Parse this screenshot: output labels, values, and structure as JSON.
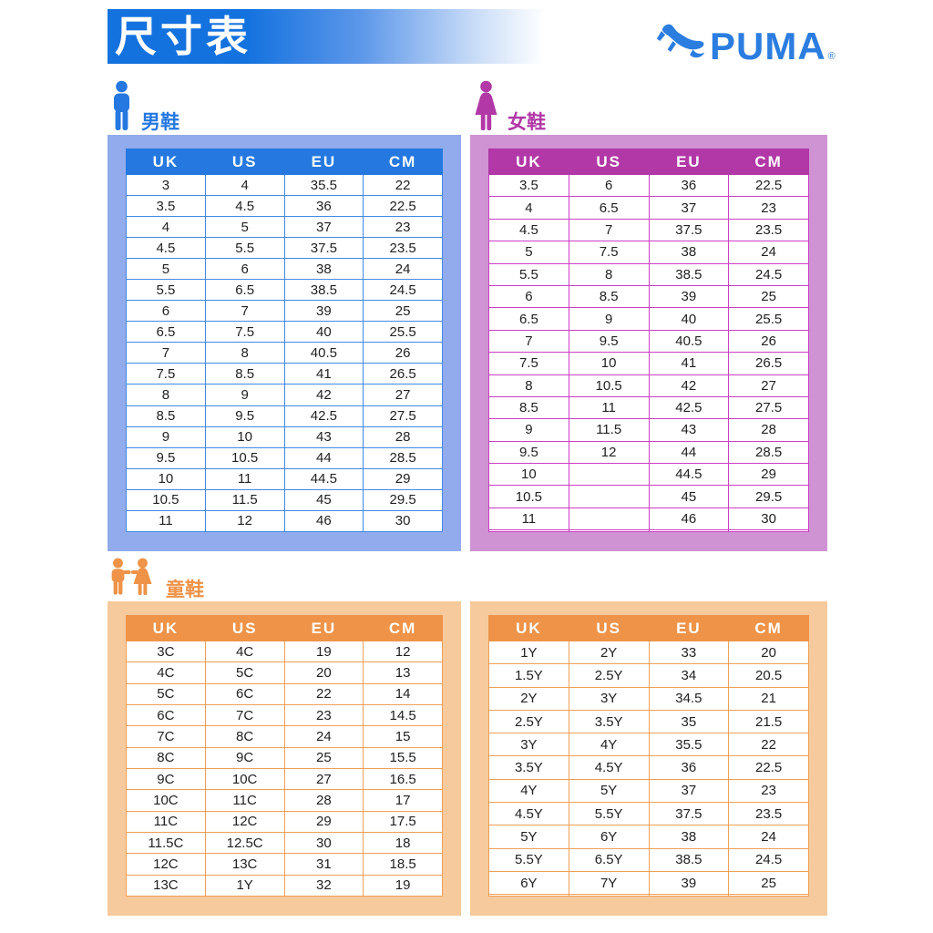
{
  "header": {
    "title": "尺寸表",
    "brand": "PUMA",
    "registered_mark": "®"
  },
  "colors": {
    "title-blue": "#1472df",
    "brand-blue": "#2b7de0",
    "men-accent": "#2478e0",
    "men-frame": "#92abec",
    "men-border": "#4289e4",
    "women-accent": "#b138a6",
    "women-frame": "#cf92d2",
    "women-border": "#cb3fc4",
    "kids-accent": "#ee9348",
    "kids-frame": "#f6ca9c",
    "kids-border": "#efa057",
    "cell-text": "#222222"
  },
  "sections": {
    "men": {
      "label": "男鞋",
      "icon": "man-icon",
      "columns": [
        "UK",
        "US",
        "EU",
        "CM"
      ],
      "rows": [
        [
          "3",
          "4",
          "35.5",
          "22"
        ],
        [
          "3.5",
          "4.5",
          "36",
          "22.5"
        ],
        [
          "4",
          "5",
          "37",
          "23"
        ],
        [
          "4.5",
          "5.5",
          "37.5",
          "23.5"
        ],
        [
          "5",
          "6",
          "38",
          "24"
        ],
        [
          "5.5",
          "6.5",
          "38.5",
          "24.5"
        ],
        [
          "6",
          "7",
          "39",
          "25"
        ],
        [
          "6.5",
          "7.5",
          "40",
          "25.5"
        ],
        [
          "7",
          "8",
          "40.5",
          "26"
        ],
        [
          "7.5",
          "8.5",
          "41",
          "26.5"
        ],
        [
          "8",
          "9",
          "42",
          "27"
        ],
        [
          "8.5",
          "9.5",
          "42.5",
          "27.5"
        ],
        [
          "9",
          "10",
          "43",
          "28"
        ],
        [
          "9.5",
          "10.5",
          "44",
          "28.5"
        ],
        [
          "10",
          "11",
          "44.5",
          "29"
        ],
        [
          "10.5",
          "11.5",
          "45",
          "29.5"
        ],
        [
          "11",
          "12",
          "46",
          "30"
        ]
      ]
    },
    "women": {
      "label": "女鞋",
      "icon": "woman-icon",
      "columns": [
        "UK",
        "US",
        "EU",
        "CM"
      ],
      "rows": [
        [
          "3.5",
          "6",
          "36",
          "22.5"
        ],
        [
          "4",
          "6.5",
          "37",
          "23"
        ],
        [
          "4.5",
          "7",
          "37.5",
          "23.5"
        ],
        [
          "5",
          "7.5",
          "38",
          "24"
        ],
        [
          "5.5",
          "8",
          "38.5",
          "24.5"
        ],
        [
          "6",
          "8.5",
          "39",
          "25"
        ],
        [
          "6.5",
          "9",
          "40",
          "25.5"
        ],
        [
          "7",
          "9.5",
          "40.5",
          "26"
        ],
        [
          "7.5",
          "10",
          "41",
          "26.5"
        ],
        [
          "8",
          "10.5",
          "42",
          "27"
        ],
        [
          "8.5",
          "11",
          "42.5",
          "27.5"
        ],
        [
          "9",
          "11.5",
          "43",
          "28"
        ],
        [
          "9.5",
          "12",
          "44",
          "28.5"
        ],
        [
          "10",
          "",
          "44.5",
          "29"
        ],
        [
          "10.5",
          "",
          "45",
          "29.5"
        ],
        [
          "11",
          "",
          "46",
          "30"
        ],
        [
          "",
          "",
          "",
          ""
        ]
      ]
    },
    "kids": {
      "label": "童鞋",
      "icon": "children-icon",
      "tables": [
        {
          "columns": [
            "UK",
            "US",
            "EU",
            "CM"
          ],
          "rows": [
            [
              "3C",
              "4C",
              "19",
              "12"
            ],
            [
              "4C",
              "5C",
              "20",
              "13"
            ],
            [
              "5C",
              "6C",
              "22",
              "14"
            ],
            [
              "6C",
              "7C",
              "23",
              "14.5"
            ],
            [
              "7C",
              "8C",
              "24",
              "15"
            ],
            [
              "8C",
              "9C",
              "25",
              "15.5"
            ],
            [
              "9C",
              "10C",
              "27",
              "16.5"
            ],
            [
              "10C",
              "11C",
              "28",
              "17"
            ],
            [
              "11C",
              "12C",
              "29",
              "17.5"
            ],
            [
              "11.5C",
              "12.5C",
              "30",
              "18"
            ],
            [
              "12C",
              "13C",
              "31",
              "18.5"
            ],
            [
              "13C",
              "1Y",
              "32",
              "19"
            ]
          ]
        },
        {
          "columns": [
            "UK",
            "US",
            "EU",
            "CM"
          ],
          "rows": [
            [
              "1Y",
              "2Y",
              "33",
              "20"
            ],
            [
              "1.5Y",
              "2.5Y",
              "34",
              "20.5"
            ],
            [
              "2Y",
              "3Y",
              "34.5",
              "21"
            ],
            [
              "2.5Y",
              "3.5Y",
              "35",
              "21.5"
            ],
            [
              "3Y",
              "4Y",
              "35.5",
              "22"
            ],
            [
              "3.5Y",
              "4.5Y",
              "36",
              "22.5"
            ],
            [
              "4Y",
              "5Y",
              "37",
              "23"
            ],
            [
              "4.5Y",
              "5.5Y",
              "37.5",
              "23.5"
            ],
            [
              "5Y",
              "6Y",
              "38",
              "24"
            ],
            [
              "5.5Y",
              "6.5Y",
              "38.5",
              "24.5"
            ],
            [
              "6Y",
              "7Y",
              "39",
              "25"
            ],
            [
              "",
              "",
              "",
              ""
            ]
          ]
        }
      ]
    }
  }
}
